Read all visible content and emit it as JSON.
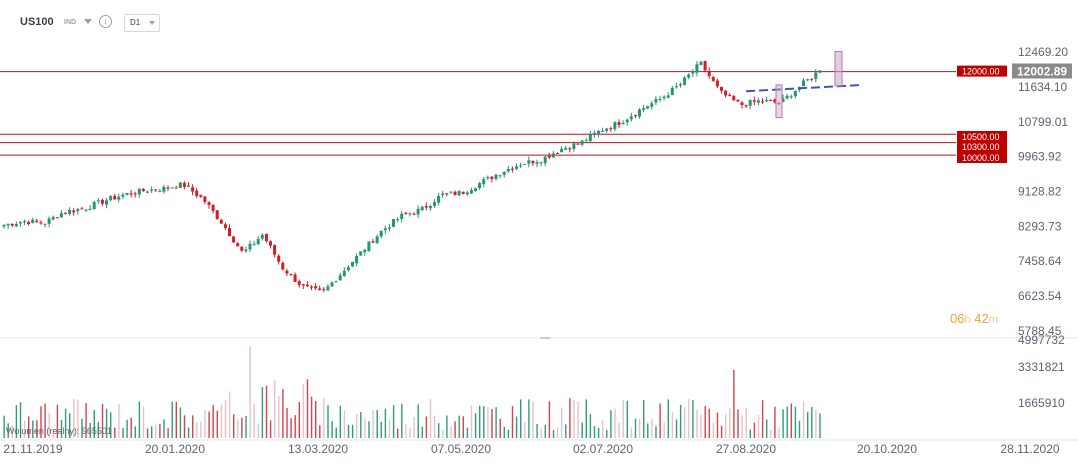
{
  "toolbar": {
    "symbol": "US100",
    "instrument_type": "IND",
    "info_glyph": "i",
    "timeframe": "D1"
  },
  "countdown": {
    "hours": "06",
    "h_unit": "h",
    "minutes": "42",
    "m_unit": "m"
  },
  "colors": {
    "up": "#26966f",
    "down": "#d11c2a",
    "level_line": "#b1141f",
    "level_label_bg": "#c00000",
    "price_label_bg": "#8a8a8a",
    "trend_line": "#3d55b8",
    "target_box": "#c9a7c7",
    "volume_up": "#2e9c76",
    "volume_down": "#d6414d",
    "volume_faded": "#e6c2c6"
  },
  "chart_data": {
    "type": "candlestick",
    "price_axis": {
      "min": 5788.45,
      "max": 12469.2,
      "ticks": [
        "12469.20",
        "11634.10",
        "10799.01",
        "9963.92",
        "9128.82",
        "8293.73",
        "7458.64",
        "6623.54",
        "5788.45"
      ]
    },
    "current_price": "12002.89",
    "horizontal_levels": [
      {
        "label": "12000.00",
        "value": 12000
      },
      {
        "label": "10500.00",
        "value": 10500
      },
      {
        "label": "10300.00",
        "value": 10300
      },
      {
        "label": "10000.00",
        "value": 10000
      }
    ],
    "x_axis_labels": [
      "21.11.2019",
      "20.01.2020",
      "13.03.2020",
      "07.05.2020",
      "02.07.2020",
      "27.08.2020",
      "20.10.2020",
      "28.11.2020"
    ],
    "trend_line": {
      "from": 11530,
      "to": 11680
    },
    "target_box": {
      "low": 11660,
      "high": 12480
    },
    "close_anchors": [
      8330,
      8420,
      8370,
      8640,
      8720,
      8900,
      9050,
      9150,
      9200,
      9300,
      8950,
      8350,
      7650,
      8100,
      7300,
      6850,
      6700,
      7200,
      7700,
      8200,
      8550,
      8700,
      9050,
      9100,
      9350,
      9600,
      9800,
      9900,
      10150,
      10300,
      10600,
      10800,
      11100,
      11350,
      11700,
      12200,
      11500,
      11200,
      11300,
      11250,
      11650,
      12030
    ],
    "volume_axis": {
      "ticks": [
        "4997732",
        "3331821",
        "1665910"
      ]
    },
    "volume_legend": "Wolumen (realny): 965501"
  }
}
